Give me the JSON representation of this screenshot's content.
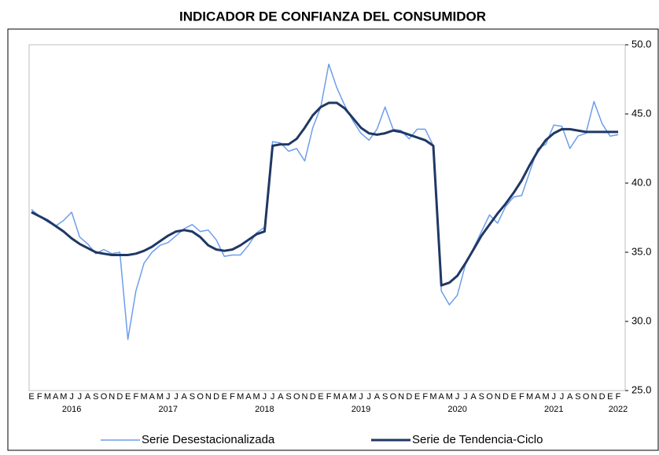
{
  "chart_data": {
    "type": "line",
    "title": "INDICADOR DE CONFIANZA DEL CONSUMIDOR",
    "categories": [
      "E",
      "F",
      "M",
      "A",
      "M",
      "J",
      "J",
      "A",
      "S",
      "O",
      "N",
      "D",
      "E",
      "F",
      "M",
      "A",
      "M",
      "J",
      "J",
      "A",
      "S",
      "O",
      "N",
      "D",
      "E",
      "F",
      "M",
      "A",
      "M",
      "J",
      "J",
      "A",
      "S",
      "O",
      "N",
      "D",
      "E",
      "F",
      "M",
      "A",
      "M",
      "J",
      "J",
      "A",
      "S",
      "O",
      "N",
      "D",
      "E",
      "F",
      "M",
      "A",
      "M",
      "J",
      "J",
      "A",
      "S",
      "O",
      "N",
      "D",
      "E",
      "F",
      "M",
      "A",
      "M",
      "J",
      "J",
      "A",
      "S",
      "O",
      "N",
      "D",
      "E",
      "F"
    ],
    "years": [
      null,
      null,
      null,
      null,
      null,
      "2016",
      null,
      null,
      null,
      null,
      null,
      null,
      null,
      null,
      null,
      null,
      null,
      "2017",
      null,
      null,
      null,
      null,
      null,
      null,
      null,
      null,
      null,
      null,
      null,
      "2018",
      null,
      null,
      null,
      null,
      null,
      null,
      null,
      null,
      null,
      null,
      null,
      "2019",
      null,
      null,
      null,
      null,
      null,
      null,
      null,
      null,
      null,
      null,
      null,
      "2020",
      null,
      null,
      null,
      null,
      null,
      null,
      null,
      null,
      null,
      null,
      null,
      "2021",
      null,
      null,
      null,
      null,
      null,
      null,
      null,
      "2022"
    ],
    "series": [
      {
        "name": "Serie Desestacionalizada",
        "color": "#6d9eeb",
        "width": 1.5,
        "values": [
          38.1,
          37.6,
          37.2,
          36.9,
          37.3,
          37.9,
          36.1,
          35.6,
          34.9,
          35.2,
          34.9,
          35.0,
          28.7,
          32.2,
          34.2,
          35.0,
          35.5,
          35.7,
          36.2,
          36.7,
          37.0,
          36.5,
          36.6,
          35.9,
          34.7,
          34.8,
          34.8,
          35.5,
          36.4,
          36.8,
          43.0,
          42.9,
          42.3,
          42.5,
          41.6,
          44.0,
          45.5,
          48.6,
          46.9,
          45.6,
          44.5,
          43.6,
          43.1,
          43.9,
          45.5,
          43.9,
          43.8,
          43.2,
          43.9,
          43.9,
          42.7,
          32.2,
          31.2,
          31.9,
          34.1,
          35.3,
          36.5,
          37.7,
          37.1,
          38.3,
          39.0,
          39.1,
          40.8,
          42.5,
          42.8,
          44.2,
          44.1,
          42.5,
          43.4,
          43.6,
          45.9,
          44.3,
          43.4,
          43.5
        ]
      },
      {
        "name": "Serie de Tendencia-Ciclo",
        "color": "#1f3864",
        "width": 3,
        "values": [
          37.9,
          37.6,
          37.3,
          36.9,
          36.5,
          36.0,
          35.6,
          35.3,
          35.0,
          34.9,
          34.8,
          34.8,
          34.8,
          34.9,
          35.1,
          35.4,
          35.8,
          36.2,
          36.5,
          36.6,
          36.5,
          36.1,
          35.5,
          35.2,
          35.1,
          35.2,
          35.5,
          35.9,
          36.3,
          36.5,
          42.7,
          42.8,
          42.8,
          43.2,
          44.0,
          44.9,
          45.5,
          45.8,
          45.8,
          45.4,
          44.7,
          44.0,
          43.6,
          43.5,
          43.6,
          43.8,
          43.7,
          43.5,
          43.3,
          43.1,
          42.7,
          32.6,
          32.8,
          33.3,
          34.2,
          35.2,
          36.2,
          37.0,
          37.8,
          38.5,
          39.3,
          40.2,
          41.3,
          42.3,
          43.1,
          43.6,
          43.9,
          43.9,
          43.8,
          43.7,
          43.7,
          43.7,
          43.7,
          43.7
        ]
      }
    ],
    "ylim": [
      25,
      50
    ],
    "yticks": [
      {
        "value": 25,
        "label": "25.0"
      },
      {
        "value": 30,
        "label": "30.0"
      },
      {
        "value": 35,
        "label": "35.0"
      },
      {
        "value": 40,
        "label": "40.0"
      },
      {
        "value": 45,
        "label": "45.0"
      },
      {
        "value": 50,
        "label": "50.0"
      }
    ],
    "y_axis_side": "right",
    "grid": false
  }
}
